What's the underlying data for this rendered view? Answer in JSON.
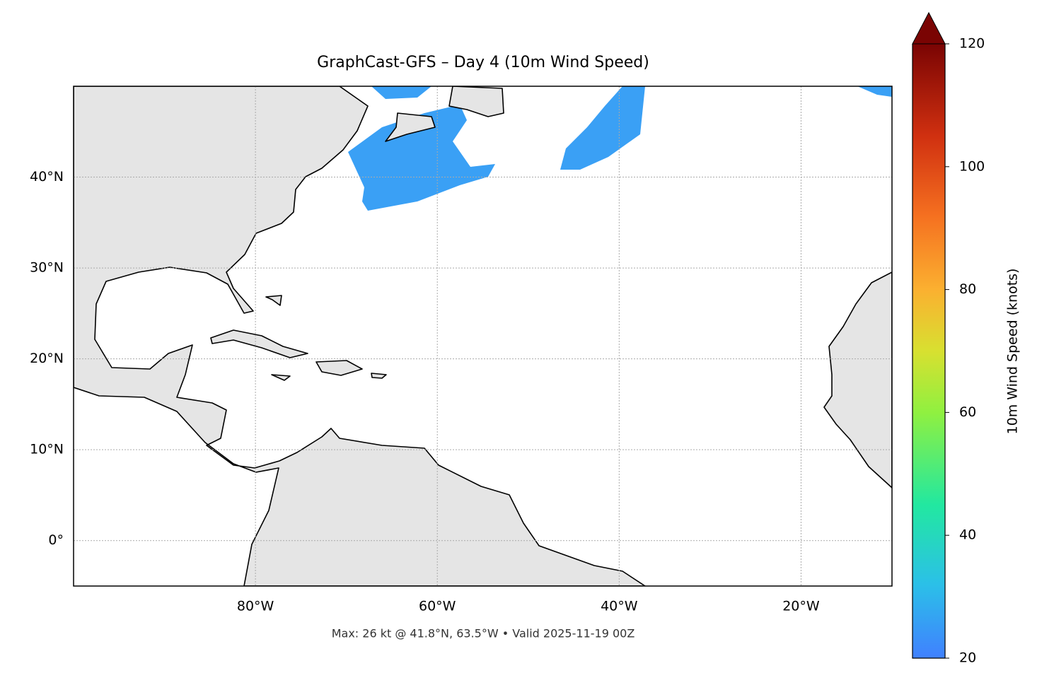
{
  "chart_data": {
    "type": "map",
    "title": "GraphCast-GFS – Day 4 (10m Wind Speed)",
    "annotation": "Max: 26 kt @ 41.8°N, 63.5°W • Valid 2025-11-19 00Z",
    "xlim": [
      -100,
      -10
    ],
    "ylim": [
      -5,
      50
    ],
    "xticks": [
      {
        "value": -80,
        "label": "80°W"
      },
      {
        "value": -60,
        "label": "60°W"
      },
      {
        "value": -40,
        "label": "40°W"
      },
      {
        "value": -20,
        "label": "20°W"
      }
    ],
    "yticks": [
      {
        "value": 0,
        "label": "0°"
      },
      {
        "value": 10,
        "label": "10°N"
      },
      {
        "value": 20,
        "label": "20°N"
      },
      {
        "value": 30,
        "label": "30°N"
      },
      {
        "value": 40,
        "label": "40°N"
      }
    ],
    "grid": true,
    "colorbar": {
      "label": "10m Wind Speed (knots)",
      "lim": [
        20,
        120
      ],
      "ticks": [
        20,
        40,
        60,
        80,
        100,
        120
      ],
      "extend": "max"
    }
  }
}
